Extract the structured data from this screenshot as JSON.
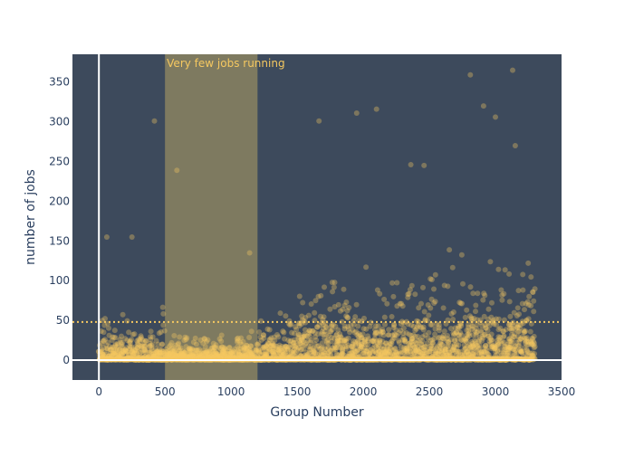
{
  "chart_data": {
    "type": "scatter",
    "title": "",
    "xlabel": "Group Number",
    "ylabel": "number of jobs",
    "xlim": [
      -200,
      3500
    ],
    "ylim": [
      -25,
      385
    ],
    "x_ticks": [
      0,
      500,
      1000,
      1500,
      2000,
      2500,
      3000,
      3500
    ],
    "y_ticks": [
      0,
      50,
      100,
      150,
      200,
      250,
      300,
      350
    ],
    "grid": false,
    "legend": "none",
    "reference_line": {
      "y": 48,
      "style": "dotted"
    },
    "highlight_region": {
      "x0": 500,
      "x1": 1200,
      "label": "Very few jobs running"
    },
    "series": [
      {
        "n_points": 3300,
        "x_range": [
          0,
          3300
        ],
        "sample_points": [
          [
            420,
            301
          ],
          [
            590,
            239
          ],
          [
            1140,
            135
          ],
          [
            1665,
            301
          ],
          [
            1950,
            311
          ],
          [
            2100,
            316
          ],
          [
            2810,
            359
          ],
          [
            2910,
            320
          ],
          [
            3130,
            365
          ],
          [
            3150,
            270
          ],
          [
            60,
            155
          ],
          [
            250,
            155
          ],
          [
            2460,
            245
          ],
          [
            2360,
            246
          ],
          [
            3000,
            306
          ]
        ]
      }
    ],
    "colors": {
      "plot_background": "#3d4a5c",
      "highlight_region": "#8a8360",
      "marker": "#f5c860",
      "reference_line": "#f5c860",
      "zero_line": "#ffffff",
      "axis_text": "#2a3f5f"
    }
  }
}
